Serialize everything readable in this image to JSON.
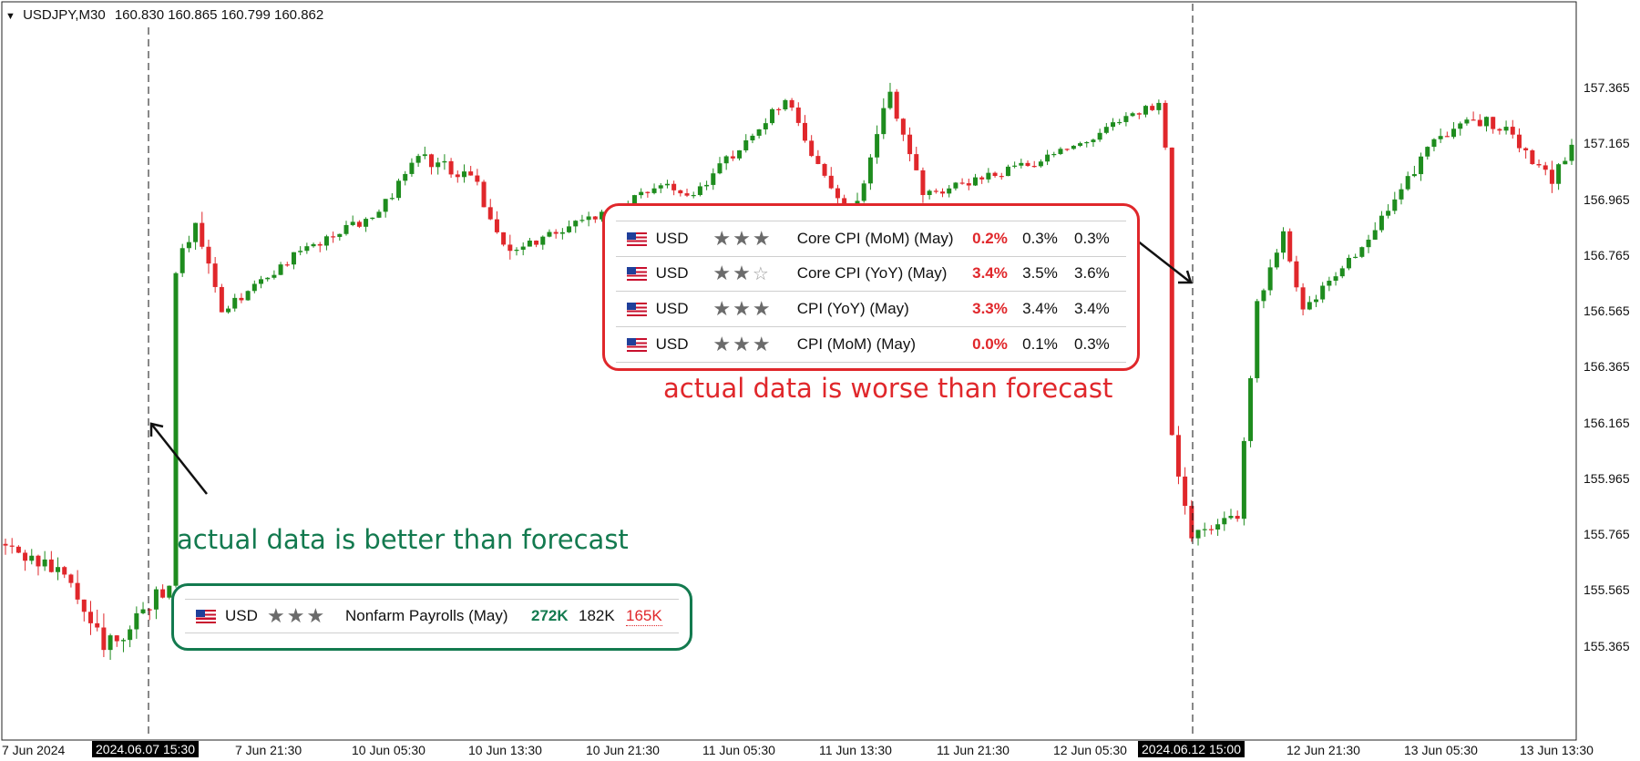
{
  "header": {
    "symbol": "USDJPY,M30",
    "prices": "160.830 160.865 160.799 160.862"
  },
  "chart_data": {
    "type": "candlestick",
    "y_axis": {
      "ticks": [
        "157.365",
        "157.165",
        "156.965",
        "156.765",
        "156.565",
        "156.365",
        "156.165",
        "155.965",
        "155.765",
        "155.565",
        "155.365"
      ],
      "ylim": [
        155.05,
        157.62
      ]
    },
    "x_axis": {
      "ticks": [
        "7 Jun 2024",
        "7 Jun 21:30",
        "10 Jun 05:30",
        "10 Jun 13:30",
        "10 Jun 21:30",
        "11 Jun 05:30",
        "11 Jun 13:30",
        "11 Jun 21:30",
        "12 Jun 05:30",
        "12 Jun 21:30",
        "13 Jun 05:30",
        "13 Jun 13:30"
      ],
      "highlighted": [
        "2024.06.07 15:30",
        "2024.06.12 15:00"
      ]
    },
    "colors": {
      "bull": "#1e8c1e",
      "bear": "#e0272b"
    },
    "segments": [
      {
        "from": 155.73,
        "to": 155.62,
        "n": 10,
        "vol": 0.06
      },
      {
        "from": 155.62,
        "to": 155.35,
        "n": 6,
        "vol": 0.1
      },
      {
        "from": 155.35,
        "to": 155.58,
        "n": 10,
        "vol": 0.07
      },
      {
        "from": 155.58,
        "to": 156.7,
        "n": 1,
        "vol": 0.02
      },
      {
        "from": 156.7,
        "to": 156.88,
        "n": 3,
        "vol": 0.06
      },
      {
        "from": 156.88,
        "to": 156.56,
        "n": 4,
        "vol": 0.08
      },
      {
        "from": 156.56,
        "to": 156.78,
        "n": 12,
        "vol": 0.03
      },
      {
        "from": 156.78,
        "to": 156.92,
        "n": 12,
        "vol": 0.04
      },
      {
        "from": 156.92,
        "to": 157.12,
        "n": 6,
        "vol": 0.04
      },
      {
        "from": 157.12,
        "to": 157.05,
        "n": 8,
        "vol": 0.05
      },
      {
        "from": 157.05,
        "to": 156.78,
        "n": 6,
        "vol": 0.07
      },
      {
        "from": 156.78,
        "to": 156.92,
        "n": 14,
        "vol": 0.04
      },
      {
        "from": 156.92,
        "to": 157.02,
        "n": 10,
        "vol": 0.03
      },
      {
        "from": 157.02,
        "to": 156.98,
        "n": 4,
        "vol": 0.03
      },
      {
        "from": 156.98,
        "to": 157.32,
        "n": 14,
        "vol": 0.04
      },
      {
        "from": 157.32,
        "to": 157.12,
        "n": 4,
        "vol": 0.05
      },
      {
        "from": 157.12,
        "to": 156.85,
        "n": 6,
        "vol": 0.06
      },
      {
        "from": 156.85,
        "to": 157.35,
        "n": 6,
        "vol": 0.06
      },
      {
        "from": 157.35,
        "to": 156.98,
        "n": 5,
        "vol": 0.05
      },
      {
        "from": 156.98,
        "to": 157.1,
        "n": 18,
        "vol": 0.03
      },
      {
        "from": 157.1,
        "to": 157.31,
        "n": 18,
        "vol": 0.03
      },
      {
        "from": 157.31,
        "to": 157.15,
        "n": 1,
        "vol": 0.02
      },
      {
        "from": 157.15,
        "to": 156.12,
        "n": 1,
        "vol": 0.02
      },
      {
        "from": 156.12,
        "to": 155.75,
        "n": 3,
        "vol": 0.06
      },
      {
        "from": 155.75,
        "to": 155.82,
        "n": 7,
        "vol": 0.05
      },
      {
        "from": 155.82,
        "to": 156.6,
        "n": 3,
        "vol": 0.04
      },
      {
        "from": 156.6,
        "to": 156.85,
        "n": 4,
        "vol": 0.05
      },
      {
        "from": 156.85,
        "to": 156.57,
        "n": 3,
        "vol": 0.04
      },
      {
        "from": 156.57,
        "to": 156.82,
        "n": 10,
        "vol": 0.04
      },
      {
        "from": 156.82,
        "to": 157.18,
        "n": 10,
        "vol": 0.05
      },
      {
        "from": 157.18,
        "to": 157.26,
        "n": 8,
        "vol": 0.05
      },
      {
        "from": 157.26,
        "to": 157.14,
        "n": 6,
        "vol": 0.05
      },
      {
        "from": 157.14,
        "to": 157.02,
        "n": 4,
        "vol": 0.06
      },
      {
        "from": 157.02,
        "to": 157.16,
        "n": 3,
        "vol": 0.05
      }
    ]
  },
  "events_red": [
    {
      "currency": "USD",
      "stars": 3,
      "name": "Core CPI (MoM) (May)",
      "actual": "0.2%",
      "forecast": "0.3%",
      "previous": "0.3%"
    },
    {
      "currency": "USD",
      "stars": 2,
      "name": "Core CPI (YoY) (May)",
      "actual": "3.4%",
      "forecast": "3.5%",
      "previous": "3.6%"
    },
    {
      "currency": "USD",
      "stars": 3,
      "name": "CPI (YoY) (May)",
      "actual": "3.3%",
      "forecast": "3.4%",
      "previous": "3.4%"
    },
    {
      "currency": "USD",
      "stars": 3,
      "name": "CPI (MoM) (May)",
      "actual": "0.0%",
      "forecast": "0.1%",
      "previous": "0.3%"
    }
  ],
  "events_green": [
    {
      "currency": "USD",
      "stars": 3,
      "name": "Nonfarm Payrolls (May)",
      "actual": "272K",
      "forecast": "182K",
      "previous": "165K"
    }
  ],
  "annotations": {
    "worse": "actual data is worse than forecast",
    "better": "actual data is better than forecast"
  }
}
